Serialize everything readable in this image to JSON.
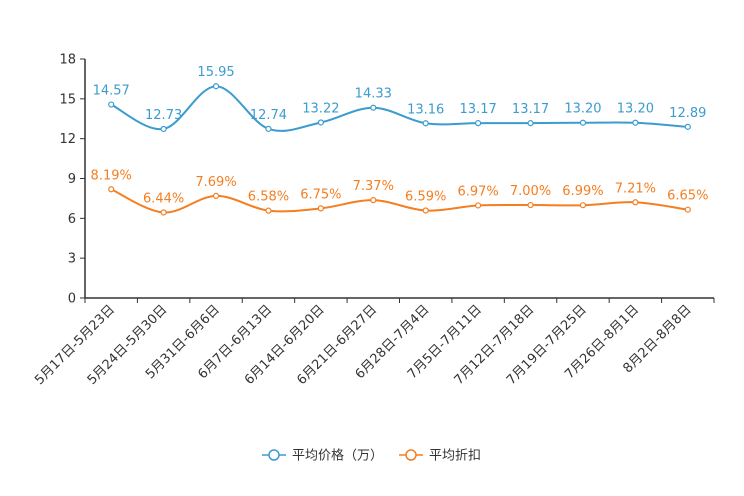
{
  "chart_data": {
    "type": "line",
    "title": "",
    "xlabel": "",
    "ylabel": "",
    "ylim": [
      0,
      18
    ],
    "yticks": [
      0,
      3,
      6,
      9,
      12,
      15,
      18
    ],
    "grid": false,
    "legend_position": "bottom-center",
    "categories": [
      "5月17日-5月23日",
      "5月24日-5月30日",
      "5月31日-6月6日",
      "6月7日-6月13日",
      "6月14日-6月20日",
      "6月21日-6月27日",
      "6月28日-7月4日",
      "7月5日-7月11日",
      "7月12日-7月18日",
      "7月19日-7月25日",
      "7月26日-8月1日",
      "8月2日-8月8日"
    ],
    "series": [
      {
        "name": "平均价格（万）",
        "color": "#3b9ccf",
        "values": [
          14.57,
          12.73,
          15.95,
          12.74,
          13.22,
          14.33,
          13.16,
          13.17,
          13.17,
          13.2,
          13.2,
          12.89
        ],
        "labels": [
          "14.57",
          "12.73",
          "15.95",
          "12.74",
          "13.22",
          "14.33",
          "13.16",
          "13.17",
          "13.17",
          "13.20",
          "13.20",
          "12.89"
        ]
      },
      {
        "name": "平均折扣",
        "color": "#f57e20",
        "values": [
          8.19,
          6.44,
          7.69,
          6.58,
          6.75,
          7.37,
          6.59,
          6.97,
          7.0,
          6.99,
          7.21,
          6.65
        ],
        "labels": [
          "8.19%",
          "6.44%",
          "7.69%",
          "6.58%",
          "6.75%",
          "7.37%",
          "6.59%",
          "6.97%",
          "7.00%",
          "6.99%",
          "7.21%",
          "6.65%"
        ]
      }
    ]
  }
}
